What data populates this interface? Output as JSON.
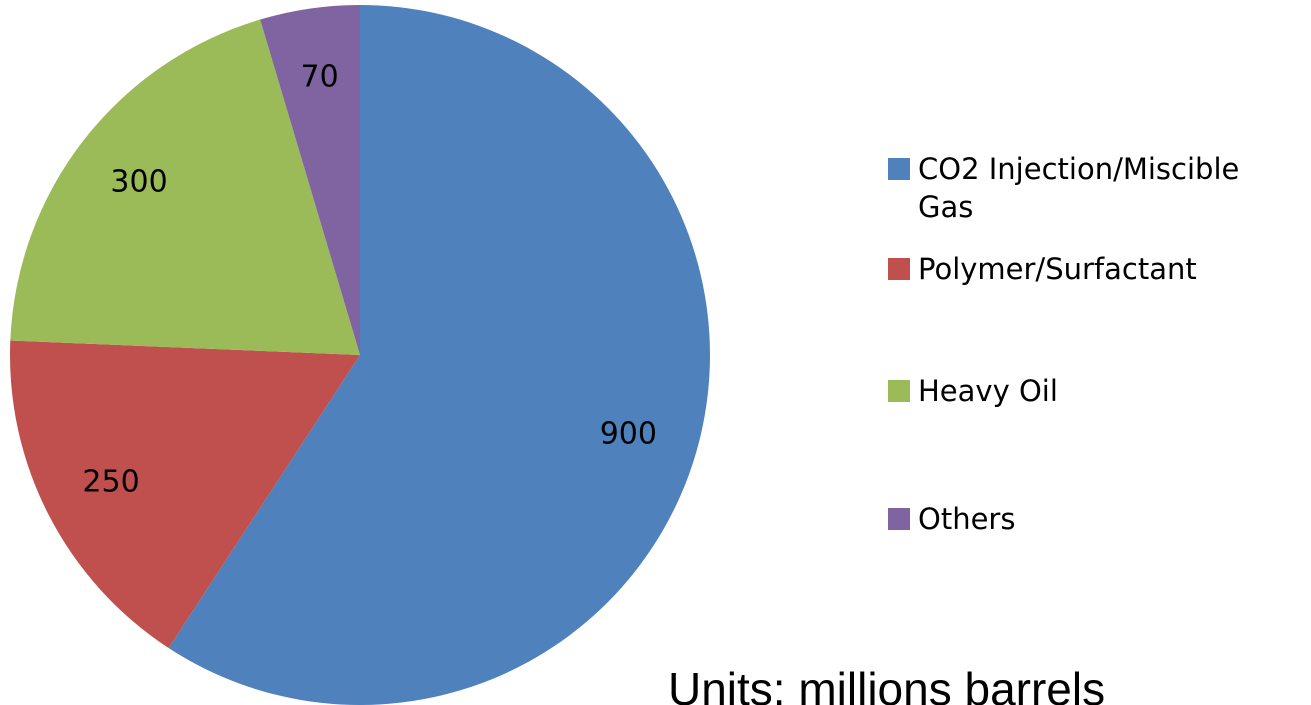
{
  "chart_data": {
    "type": "pie",
    "categories": [
      "CO2 Injection/Miscible Gas",
      "Polymer/Surfactant",
      "Heavy Oil",
      "Others"
    ],
    "values": [
      900,
      250,
      300,
      70
    ],
    "colors": [
      "#4f81bd",
      "#c0504d",
      "#9bbb59",
      "#8064a2"
    ],
    "annotation": "Units: millions barrels"
  }
}
